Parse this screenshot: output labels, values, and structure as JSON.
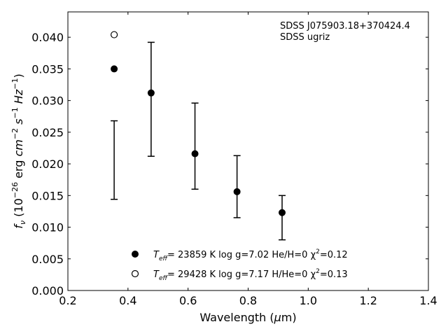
{
  "chart_data": {
    "type": "scatter",
    "xlabel": "Wavelength (μm)",
    "xlabel_parts": {
      "before": "Wavelength (",
      "mu": "μ",
      "after": "m)"
    },
    "ylabel_parts": {
      "f": "f",
      "nu": "ν",
      "open": " (10",
      "exp1": "−26",
      "erg": " erg ",
      "cm": "cm",
      "exp2": "−2",
      "s": " s",
      "exp3": "−1",
      "sp": " ",
      "hz": "Hz",
      "exp4": "−1",
      "close": ")"
    },
    "xlim": [
      0.2,
      1.4
    ],
    "ylim": [
      0.0,
      0.044
    ],
    "xticks": [
      "0.2",
      "0.4",
      "0.6",
      "0.8",
      "1.0",
      "1.2",
      "1.4"
    ],
    "yticks": [
      "0.000",
      "0.005",
      "0.010",
      "0.015",
      "0.020",
      "0.025",
      "0.030",
      "0.035",
      "0.040"
    ],
    "grid": false,
    "annotations": [
      "SDSS J075903.18+370424.4",
      "SDSS ugriz"
    ],
    "observed": {
      "x": [
        0.354,
        0.477,
        0.623,
        0.763,
        0.913
      ],
      "y": [
        0.0206,
        0.0302,
        0.0228,
        0.0164,
        0.0115
      ],
      "yerr": [
        0.0062,
        0.009,
        0.0068,
        0.0049,
        0.0035
      ]
    },
    "series": [
      {
        "name": "Teff= 23859 K  log g=7.02  He/H=0  χ2=0.12",
        "label_parts": {
          "t": "T",
          "sub": "eff",
          "rest": "= 23859 K  log g=7.02  He/H=0  χ",
          "sup": "2",
          "end": "=0.12"
        },
        "marker": "filled-circle",
        "x": [
          0.354,
          0.477,
          0.623,
          0.763,
          0.913
        ],
        "y": [
          0.035,
          0.0312,
          0.0216,
          0.0156,
          0.0123
        ]
      },
      {
        "name": "Teff= 29428 K  log g=7.17  H/He=0  χ2=0.13",
        "label_parts": {
          "t": "T",
          "sub": "eff",
          "rest": "= 29428 K  log g=7.17  H/He=0  χ",
          "sup": "2",
          "end": "=0.13"
        },
        "marker": "open-circle",
        "x": [
          0.354
        ],
        "y": [
          0.0404
        ]
      }
    ],
    "legend_position": "bottom-center"
  }
}
